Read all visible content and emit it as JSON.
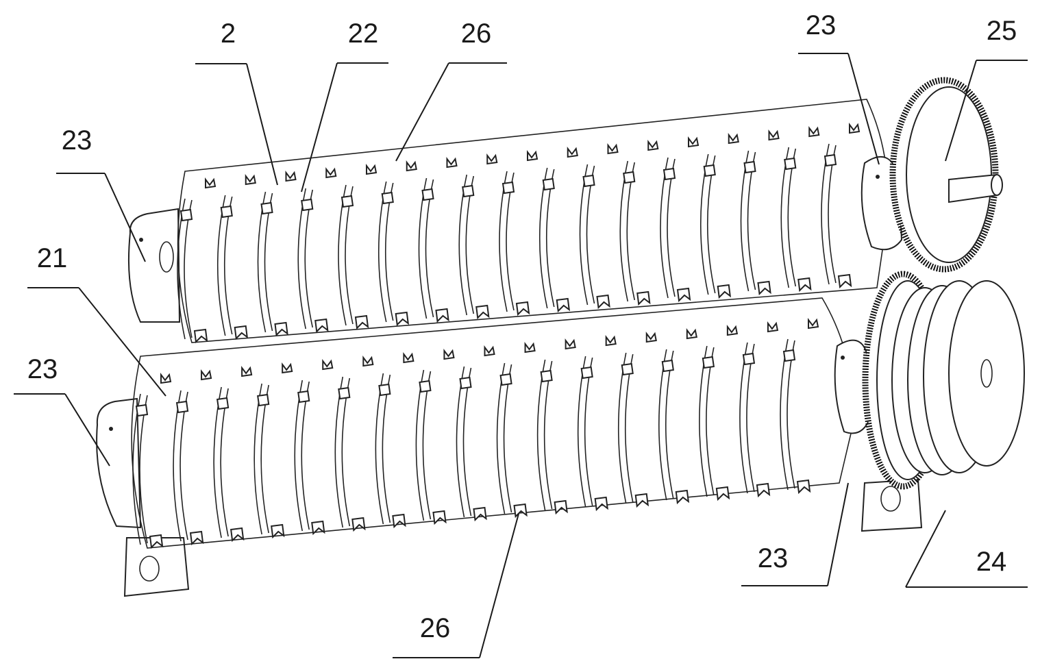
{
  "labels": {
    "l_2": "2",
    "l_22": "22",
    "l_26_top": "26",
    "l_23_top_right": "23",
    "l_25": "25",
    "l_23_left_upper": "23",
    "l_21": "21",
    "l_23_left_lower": "23",
    "l_23_bottom_right": "23",
    "l_24": "24",
    "l_26_bottom": "26"
  }
}
